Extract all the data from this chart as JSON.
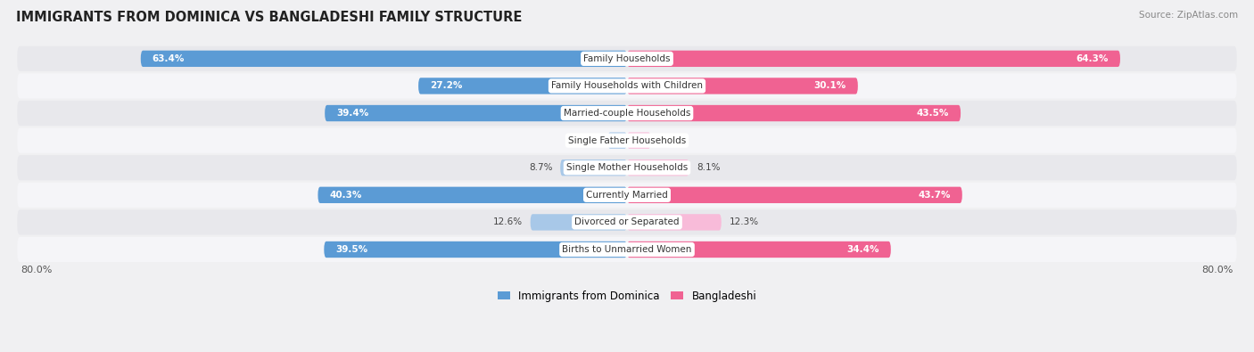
{
  "title": "IMMIGRANTS FROM DOMINICA VS BANGLADESHI FAMILY STRUCTURE",
  "source": "Source: ZipAtlas.com",
  "categories": [
    "Family Households",
    "Family Households with Children",
    "Married-couple Households",
    "Single Father Households",
    "Single Mother Households",
    "Currently Married",
    "Divorced or Separated",
    "Births to Unmarried Women"
  ],
  "dominica_values": [
    63.4,
    27.2,
    39.4,
    2.5,
    8.7,
    40.3,
    12.6,
    39.5
  ],
  "bangladeshi_values": [
    64.3,
    30.1,
    43.5,
    3.1,
    8.1,
    43.7,
    12.3,
    34.4
  ],
  "dominica_color_large": "#5b9bd5",
  "dominica_color_small": "#a8c8e8",
  "bangladeshi_color_large": "#f06292",
  "bangladeshi_color_small": "#f8bbd9",
  "axis_max": 80.0,
  "legend_label_dominica": "Immigrants from Dominica",
  "legend_label_bangladeshi": "Bangladeshi",
  "background_color": "#f0f0f2",
  "row_bg_even": "#e8e8ec",
  "row_bg_odd": "#f5f5f8",
  "value_threshold": 15
}
